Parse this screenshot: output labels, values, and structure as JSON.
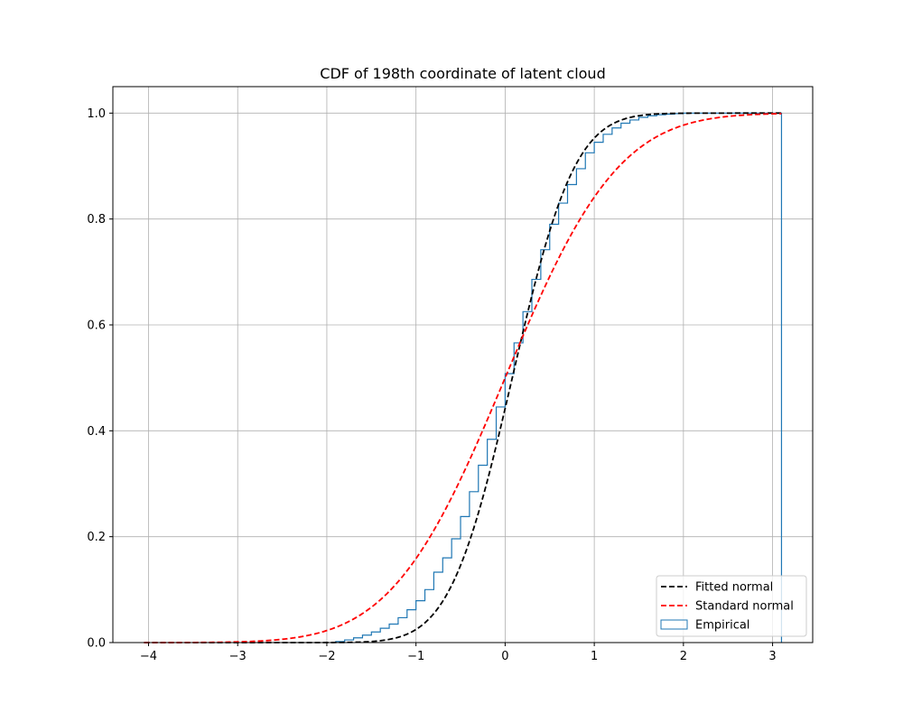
{
  "chart_data": {
    "type": "line",
    "title": "CDF of 198th coordinate of latent cloud",
    "xlabel": "",
    "ylabel": "",
    "xlim": [
      -4.4,
      3.45
    ],
    "ylim": [
      0.0,
      1.05
    ],
    "x_ticks": [
      -4,
      -3,
      -2,
      -1,
      0,
      1,
      2,
      3
    ],
    "x_tick_labels": [
      "−4",
      "−3",
      "−2",
      "−1",
      "0",
      "1",
      "2",
      "3"
    ],
    "y_ticks": [
      0.0,
      0.2,
      0.4,
      0.6,
      0.8,
      1.0
    ],
    "y_tick_labels": [
      "0.0",
      "0.2",
      "0.4",
      "0.6",
      "0.8",
      "1.0"
    ],
    "grid": true,
    "legend": {
      "placement": "lower-right"
    },
    "series": [
      {
        "name": "Fitted normal",
        "kind": "normal-cdf",
        "mean": 0.08,
        "std": 0.55,
        "x_range": [
          -4.05,
          3.1
        ],
        "color": "#000000",
        "dash": true
      },
      {
        "name": "Standard normal",
        "kind": "normal-cdf",
        "mean": 0.0,
        "std": 1.0,
        "x_range": [
          -4.05,
          3.1
        ],
        "color": "#ff0000",
        "dash": true
      },
      {
        "name": "Empirical",
        "kind": "step-histogram",
        "color": "#1f77b4",
        "bin_edges": [
          -1.9,
          -1.8,
          -1.7,
          -1.6,
          -1.5,
          -1.4,
          -1.3,
          -1.2,
          -1.1,
          -1.0,
          -0.9,
          -0.8,
          -0.7,
          -0.6,
          -0.5,
          -0.4,
          -0.3,
          -0.2,
          -0.1,
          0.0,
          0.1,
          0.2,
          0.3,
          0.4,
          0.5,
          0.6,
          0.7,
          0.8,
          0.9,
          1.0,
          1.1,
          1.2,
          1.3,
          1.4,
          1.5,
          1.6,
          1.7,
          1.8,
          1.9,
          2.0,
          3.1
        ],
        "values": [
          0.002,
          0.005,
          0.009,
          0.014,
          0.02,
          0.027,
          0.035,
          0.047,
          0.062,
          0.079,
          0.1,
          0.133,
          0.16,
          0.196,
          0.238,
          0.285,
          0.335,
          0.384,
          0.445,
          0.508,
          0.566,
          0.625,
          0.686,
          0.742,
          0.79,
          0.83,
          0.865,
          0.895,
          0.925,
          0.945,
          0.96,
          0.972,
          0.981,
          0.987,
          0.992,
          0.995,
          0.997,
          0.998,
          0.999,
          1.0
        ],
        "drop_to_zero_at": 3.1
      }
    ]
  }
}
